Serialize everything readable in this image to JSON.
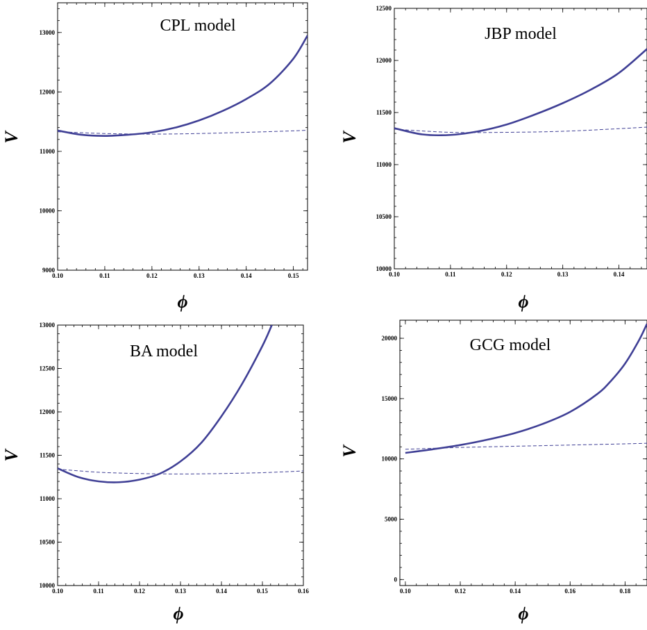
{
  "chart_data": [
    {
      "type": "line",
      "model_label": "CPL model",
      "xlabel": "ϕ",
      "ylabel": "V",
      "xlim": [
        0.1,
        0.153
      ],
      "ylim": [
        9000,
        13500
      ],
      "xticks": [
        0.1,
        0.11,
        0.12,
        0.13,
        0.14,
        0.15
      ],
      "xtick_labels": [
        "0.10",
        "0.11",
        "0.12",
        "0.13",
        "0.14",
        "0.15"
      ],
      "yticks": [
        9000,
        10000,
        11000,
        12000,
        13000
      ],
      "ytick_labels": [
        "9000",
        "10000",
        "11000",
        "12000",
        "13000"
      ],
      "series": [
        {
          "style": "solid",
          "x": [
            0.1,
            0.105,
            0.11,
            0.115,
            0.12,
            0.125,
            0.13,
            0.135,
            0.14,
            0.145,
            0.15,
            0.153
          ],
          "y": [
            11350,
            11280,
            11260,
            11280,
            11320,
            11400,
            11520,
            11680,
            11880,
            12140,
            12560,
            12950
          ]
        },
        {
          "style": "dashed",
          "x": [
            0.1,
            0.11,
            0.12,
            0.13,
            0.14,
            0.15,
            0.153
          ],
          "y": [
            11330,
            11300,
            11290,
            11300,
            11320,
            11345,
            11355
          ]
        }
      ]
    },
    {
      "type": "line",
      "model_label": "JBP model",
      "xlabel": "ϕ",
      "ylabel": "V",
      "xlim": [
        0.1,
        0.145
      ],
      "ylim": [
        10000,
        12500
      ],
      "xticks": [
        0.1,
        0.11,
        0.12,
        0.13,
        0.14
      ],
      "xtick_labels": [
        "0.10",
        "0.11",
        "0.12",
        "0.13",
        "0.14"
      ],
      "yticks": [
        10000,
        10500,
        11000,
        11500,
        12000,
        12500
      ],
      "ytick_labels": [
        "10000",
        "10500",
        "11000",
        "11500",
        "12000",
        "12500"
      ],
      "series": [
        {
          "style": "solid",
          "x": [
            0.1,
            0.105,
            0.11,
            0.115,
            0.12,
            0.125,
            0.13,
            0.135,
            0.14,
            0.145
          ],
          "y": [
            11350,
            11290,
            11285,
            11320,
            11385,
            11480,
            11590,
            11720,
            11880,
            12110
          ]
        },
        {
          "style": "dashed",
          "x": [
            0.1,
            0.11,
            0.12,
            0.13,
            0.14,
            0.145
          ],
          "y": [
            11340,
            11310,
            11310,
            11320,
            11345,
            11360
          ]
        }
      ]
    },
    {
      "type": "line",
      "model_label": "BA model",
      "xlabel": "ϕ",
      "ylabel": "V",
      "xlim": [
        0.1,
        0.16
      ],
      "ylim": [
        10000,
        13000
      ],
      "xticks": [
        0.1,
        0.11,
        0.12,
        0.13,
        0.14,
        0.15,
        0.16
      ],
      "xtick_labels": [
        "0.10",
        "0.11",
        "0.12",
        "0.13",
        "0.14",
        "0.15",
        "0.16"
      ],
      "yticks": [
        10000,
        10500,
        11000,
        11500,
        12000,
        12500,
        13000
      ],
      "ytick_labels": [
        "10000",
        "10500",
        "11000",
        "11500",
        "12000",
        "12500",
        "13000"
      ],
      "series": [
        {
          "style": "solid",
          "x": [
            0.1,
            0.105,
            0.11,
            0.115,
            0.12,
            0.125,
            0.13,
            0.135,
            0.14,
            0.145,
            0.15,
            0.1523
          ],
          "y": [
            11350,
            11250,
            11200,
            11190,
            11220,
            11290,
            11430,
            11640,
            11950,
            12320,
            12760,
            13000
          ]
        },
        {
          "style": "dashed",
          "x": [
            0.1,
            0.11,
            0.12,
            0.13,
            0.14,
            0.15,
            0.16
          ],
          "y": [
            11340,
            11305,
            11290,
            11285,
            11290,
            11300,
            11320
          ]
        }
      ]
    },
    {
      "type": "line",
      "model_label": "GCG model",
      "xlabel": "ϕ",
      "ylabel": "V",
      "xlim": [
        0.098,
        0.188
      ],
      "ylim": [
        -500,
        21500
      ],
      "xticks": [
        0.1,
        0.12,
        0.14,
        0.16,
        0.18
      ],
      "xtick_labels": [
        "0.10",
        "0.12",
        "0.14",
        "0.16",
        "0.18"
      ],
      "yticks": [
        0,
        5000,
        10000,
        15000,
        20000
      ],
      "ytick_labels": [
        "0",
        "5000",
        "10000",
        "15000",
        "20000"
      ],
      "series": [
        {
          "style": "solid",
          "x": [
            0.1,
            0.11,
            0.12,
            0.13,
            0.14,
            0.15,
            0.16,
            0.17,
            0.175,
            0.18,
            0.185,
            0.188
          ],
          "y": [
            10500,
            10800,
            11150,
            11600,
            12150,
            12900,
            13900,
            15400,
            16500,
            17900,
            19800,
            21200
          ]
        },
        {
          "style": "dashed",
          "x": [
            0.1,
            0.12,
            0.14,
            0.16,
            0.18,
            0.188
          ],
          "y": [
            10800,
            10950,
            11050,
            11150,
            11250,
            11300
          ]
        }
      ]
    }
  ]
}
